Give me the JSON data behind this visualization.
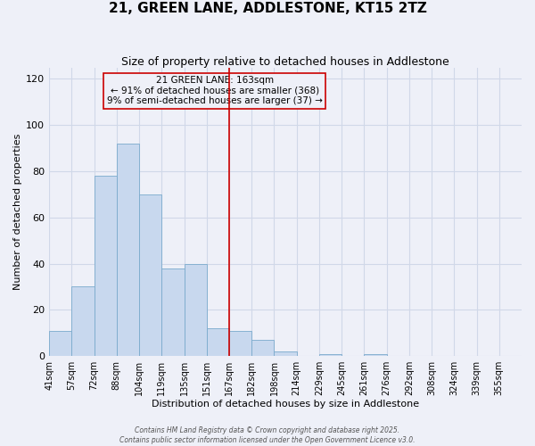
{
  "title": "21, GREEN LANE, ADDLESTONE, KT15 2TZ",
  "subtitle": "Size of property relative to detached houses in Addlestone",
  "xlabel": "Distribution of detached houses by size in Addlestone",
  "ylabel": "Number of detached properties",
  "bar_values": [
    11,
    30,
    78,
    92,
    70,
    38,
    40,
    12,
    11,
    7,
    2,
    0,
    1,
    0,
    1
  ],
  "all_xtick_labels": [
    "41sqm",
    "57sqm",
    "72sqm",
    "88sqm",
    "104sqm",
    "119sqm",
    "135sqm",
    "151sqm",
    "167sqm",
    "182sqm",
    "198sqm",
    "214sqm",
    "229sqm",
    "245sqm",
    "261sqm",
    "276sqm",
    "292sqm",
    "308sqm",
    "324sqm",
    "339sqm",
    "355sqm"
  ],
  "bar_color": "#c8d8ee",
  "bar_edgecolor": "#7aaacc",
  "vline_index": 8,
  "vline_color": "#cc0000",
  "annotation_title": "21 GREEN LANE: 163sqm",
  "annotation_line1": "← 91% of detached houses are smaller (368)",
  "annotation_line2": "9% of semi-detached houses are larger (37) →",
  "annotation_box_edgecolor": "#cc0000",
  "ylim": [
    0,
    125
  ],
  "yticks": [
    0,
    20,
    40,
    60,
    80,
    100,
    120
  ],
  "footer_line1": "Contains HM Land Registry data © Crown copyright and database right 2025.",
  "footer_line2": "Contains public sector information licensed under the Open Government Licence v3.0.",
  "background_color": "#eef0f8",
  "grid_color": "#d0d8e8",
  "title_fontsize": 11,
  "subtitle_fontsize": 9,
  "annotation_fontsize": 7.5,
  "xlabel_fontsize": 8,
  "ylabel_fontsize": 8,
  "tick_fontsize": 7,
  "ytick_fontsize": 8
}
